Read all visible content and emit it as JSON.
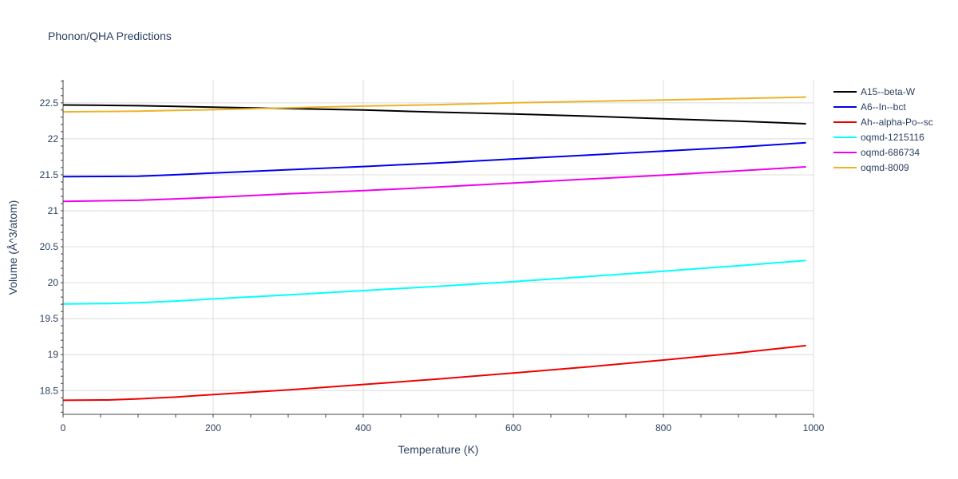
{
  "chart_data": {
    "type": "line",
    "title": "Phonon/QHA Predictions",
    "xlabel": "Temperature (K)",
    "ylabel": "Volume (Å^3/atom)",
    "xlim": [
      0,
      1000
    ],
    "ylim": [
      18.17,
      22.82
    ],
    "xticks": [
      0,
      200,
      400,
      600,
      800,
      1000
    ],
    "xtick_labels": [
      "0",
      "200",
      "400",
      "600",
      "800",
      "1000"
    ],
    "yticks": [
      18.5,
      19,
      19.5,
      20,
      20.5,
      21,
      21.5,
      22,
      22.5
    ],
    "ytick_labels": [
      "18.5",
      "19",
      "19.5",
      "20",
      "20.5",
      "21",
      "21.5",
      "22",
      "22.5"
    ],
    "grid": true,
    "legend_position": "right",
    "x": [
      0,
      60,
      100,
      150,
      200,
      300,
      400,
      500,
      600,
      700,
      800,
      900,
      990
    ],
    "series": [
      {
        "name": "A15--beta-W",
        "color": "#000000",
        "values": [
          22.47,
          22.465,
          22.46,
          22.45,
          22.44,
          22.42,
          22.4,
          22.37,
          22.345,
          22.315,
          22.28,
          22.245,
          22.21
        ]
      },
      {
        "name": "A6--In--bct",
        "color": "#0000ee",
        "values": [
          21.475,
          21.477,
          21.48,
          21.5,
          21.525,
          21.57,
          21.615,
          21.665,
          21.72,
          21.775,
          21.83,
          21.885,
          21.945
        ]
      },
      {
        "name": "Ah--alpha-Po--sc",
        "color": "#ee0000",
        "values": [
          18.365,
          18.37,
          18.385,
          18.41,
          18.445,
          18.51,
          18.585,
          18.66,
          18.745,
          18.83,
          18.925,
          19.025,
          19.125
        ]
      },
      {
        "name": "oqmd-1215116",
        "color": "#00ffff",
        "values": [
          19.705,
          19.71,
          19.72,
          19.745,
          19.775,
          19.83,
          19.89,
          19.95,
          20.015,
          20.085,
          20.16,
          20.235,
          20.31
        ]
      },
      {
        "name": "oqmd-686734",
        "color": "#ee00ee",
        "values": [
          21.13,
          21.14,
          21.145,
          21.165,
          21.185,
          21.235,
          21.28,
          21.33,
          21.385,
          21.44,
          21.495,
          21.555,
          21.61
        ]
      },
      {
        "name": "oqmd-8009",
        "color": "#ebb32a",
        "values": [
          22.375,
          22.38,
          22.385,
          22.395,
          22.405,
          22.43,
          22.455,
          22.475,
          22.5,
          22.52,
          22.54,
          22.56,
          22.58
        ]
      }
    ]
  }
}
